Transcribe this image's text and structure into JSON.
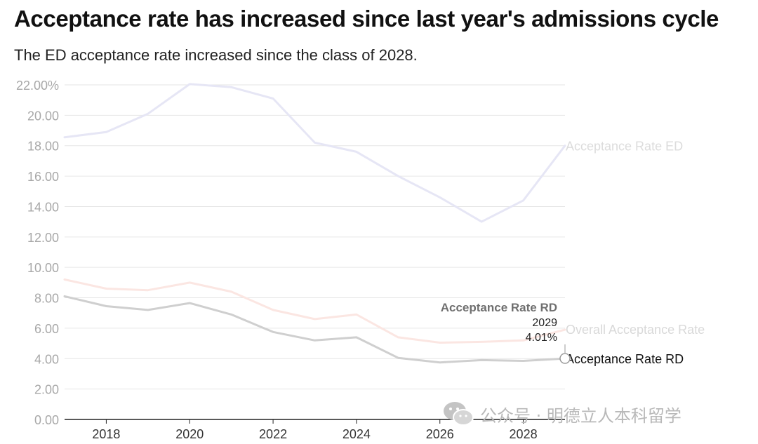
{
  "header": {
    "title": "Acceptance rate has increased since last year's admissions cycle",
    "subtitle": "The ED acceptance rate increased since the class of 2028."
  },
  "watermark": {
    "text": "公众号 · 明德立人本科留学",
    "icon": "wechat-icon"
  },
  "colors": {
    "ed": "#e6e6f5",
    "overall": "#fbe6e2",
    "rd": "#cfcfcf",
    "ed_label": "#dcdcdc",
    "overall_label": "#d9d9d9",
    "rd_label": "#111111",
    "tooltip_title": "#6f6f6f",
    "grid": "#e6e6e6",
    "axis": "#222222",
    "ytick": "#a8a8a8",
    "xtick": "#333333"
  },
  "chart_data": {
    "type": "line",
    "title": "Acceptance rate has increased since last year's admissions cycle",
    "subtitle": "The ED acceptance rate increased since the class of 2028.",
    "xlabel": "",
    "ylabel": "",
    "xlim": [
      2017,
      2029
    ],
    "ylim": [
      0,
      22
    ],
    "x_ticks": [
      "2018",
      "2020",
      "2022",
      "2024",
      "2026",
      "2028"
    ],
    "y_ticks": [
      "0.00",
      "2.00",
      "4.00",
      "6.00",
      "8.00",
      "10.00",
      "12.00",
      "14.00",
      "16.00",
      "18.00",
      "20.00",
      "22.00%"
    ],
    "grid": true,
    "legend": "direct labels at right end of lines",
    "x": [
      2017,
      2018,
      2019,
      2020,
      2021,
      2022,
      2023,
      2024,
      2025,
      2026,
      2027,
      2028,
      2029
    ],
    "series": [
      {
        "name": "Acceptance Rate ED",
        "values": [
          18.55,
          18.9,
          20.1,
          22.05,
          21.85,
          21.1,
          18.2,
          17.6,
          16.0,
          14.6,
          13.0,
          14.4,
          18.0
        ]
      },
      {
        "name": "Overall Acceptance Rate",
        "values": [
          9.2,
          8.6,
          8.5,
          9.0,
          8.4,
          7.2,
          6.6,
          6.9,
          5.4,
          5.05,
          5.1,
          5.2,
          5.9
        ]
      },
      {
        "name": "Acceptance Rate RD",
        "values": [
          8.1,
          7.45,
          7.2,
          7.65,
          6.9,
          5.75,
          5.2,
          5.4,
          4.05,
          3.75,
          3.9,
          3.85,
          4.01
        ]
      }
    ],
    "tooltip": {
      "series": "Acceptance Rate RD",
      "x_label": "2029",
      "value_label": "4.01%"
    }
  }
}
